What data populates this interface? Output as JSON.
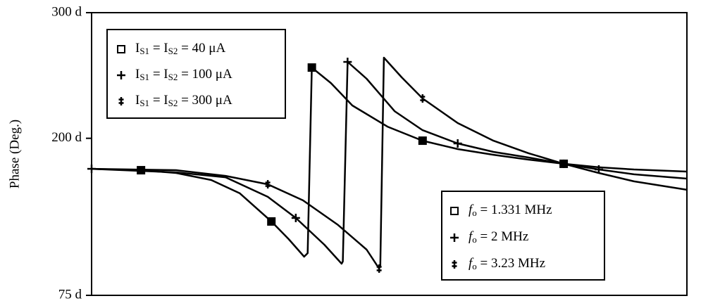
{
  "chart_data": {
    "type": "line",
    "y_label": "Phase  (Deg.)",
    "xlim": [
      0,
      100
    ],
    "ylim": [
      75,
      300
    ],
    "yticks": [
      {
        "value": 300,
        "label": "300 d"
      },
      {
        "value": 200,
        "label": "200 d"
      },
      {
        "value": 75,
        "label": "75 d"
      }
    ],
    "series": [
      {
        "name": "IS1 = IS2 = 40 μA",
        "frequency": "fo = 1.331 MHz",
        "color": "#000000",
        "marker": "square",
        "x": [
          0,
          8.3,
          14.2,
          20.1,
          24.9,
          30.2,
          33.1,
          35.7,
          36.3,
          37.0,
          40.2,
          43.8,
          49.7,
          55.6,
          61.5,
          67.5,
          73.4,
          79.3,
          85.2,
          91.1,
          100
        ],
        "values": [
          175.7,
          174.6,
          172.4,
          166.8,
          156.2,
          133.8,
          119.8,
          105.8,
          108.6,
          256.3,
          244,
          226.1,
          209.3,
          198.1,
          191.4,
          186.9,
          183,
          179.7,
          176.9,
          175.2,
          173.5
        ]
      },
      {
        "name": "IS1 = IS2 = 100 μA",
        "frequency": "fo = 2 MHz",
        "color": "#000000",
        "marker": "plus",
        "x": [
          0,
          14.2,
          22.5,
          29.6,
          34.3,
          39.1,
          42.0,
          42.2,
          43.0,
          46.2,
          50.9,
          55.6,
          61.5,
          67.5,
          73.4,
          79.3,
          85.2,
          91.1,
          100
        ],
        "values": [
          175.7,
          172.9,
          169,
          153.4,
          136.6,
          115.3,
          100.2,
          101.9,
          260.8,
          247.4,
          221.6,
          206.5,
          195.9,
          189.2,
          184.7,
          179.7,
          175.2,
          171.3,
          167.9
        ]
      },
      {
        "name": "IS1 = IS2 = 300 μA",
        "frequency": "fo = 3.23 MHz",
        "color": "#000000",
        "marker": "double-cross",
        "x": [
          0,
          14.2,
          22.5,
          29.6,
          35.5,
          41.4,
          46.2,
          48.3,
          48.5,
          49.1,
          52.1,
          55.6,
          61.5,
          67.5,
          73.4,
          79.3,
          85.2,
          91.1,
          100
        ],
        "values": [
          175.7,
          174.6,
          170.1,
          163.4,
          150.6,
          131,
          111.4,
          96.3,
          98.5,
          264.2,
          248.5,
          231.7,
          212.1,
          198.1,
          188.1,
          179.7,
          172.4,
          165.7,
          159
        ]
      }
    ]
  }
}
